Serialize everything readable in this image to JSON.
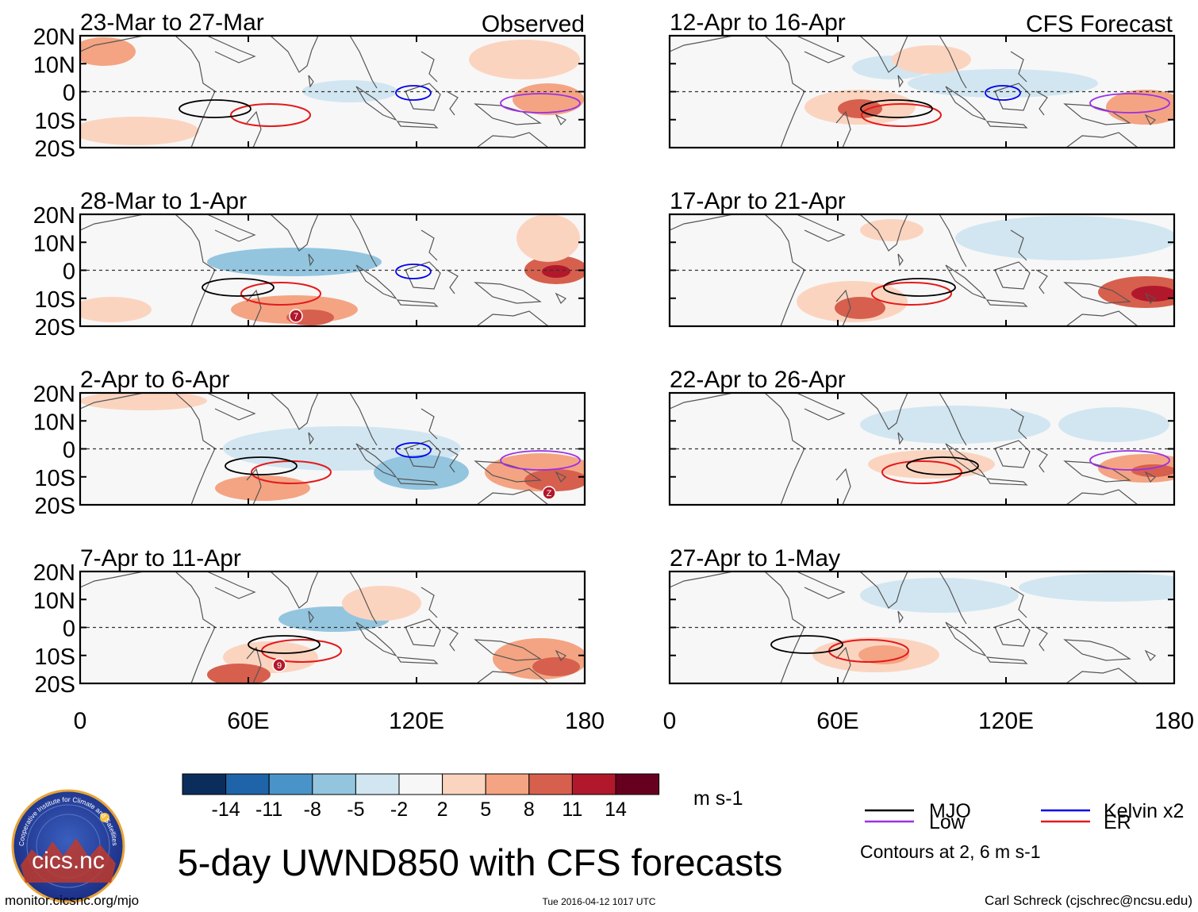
{
  "observed_label": "Observed",
  "forecast_label": "CFS Forecast",
  "panels": [
    {
      "title": "23-Mar to 27-Mar"
    },
    {
      "title": "28-Mar to 1-Apr"
    },
    {
      "title": "2-Apr to 6-Apr"
    },
    {
      "title": "7-Apr to 11-Apr"
    },
    {
      "title": "12-Apr to 16-Apr"
    },
    {
      "title": "17-Apr to 21-Apr"
    },
    {
      "title": "22-Apr to 26-Apr"
    },
    {
      "title": "27-Apr to 1-May"
    }
  ],
  "lat_labels": [
    "20N",
    "10N",
    "0",
    "10S",
    "20S"
  ],
  "lon_labels": [
    "0",
    "60E",
    "120E",
    "180"
  ],
  "storm_markers": [
    {
      "panel": 1,
      "label": "7"
    },
    {
      "panel": 2,
      "label": "Z"
    },
    {
      "panel": 3,
      "label": "9"
    }
  ],
  "colorbar": {
    "colors": [
      "#0b2d5c",
      "#1f64a8",
      "#4a93c8",
      "#93c5df",
      "#d2e6f1",
      "#f7f7f7",
      "#fbd4c0",
      "#f4a482",
      "#d6604d",
      "#b2182b",
      "#67001f"
    ],
    "ticks": [
      "-14",
      "-11",
      "-8",
      "-5",
      "-2",
      "2",
      "5",
      "8",
      "11",
      "14"
    ],
    "units": "m s-1"
  },
  "legend": {
    "items": [
      {
        "label": "MJO",
        "color": "#000000"
      },
      {
        "label": "Kelvin x2",
        "color": "#0000ee"
      },
      {
        "label": "Low",
        "color": "#9b30e6"
      },
      {
        "label": "ER",
        "color": "#e41a1c"
      }
    ],
    "note": "Contours at 2, 6 m s-1"
  },
  "main_title": "5-day UWND850 with CFS forecasts",
  "logo_text": "cics.nc",
  "logo_ring_text": "Cooperative Institute for Climate and Satellites",
  "footer": {
    "left": "monitor.cicsnc.org/mjo",
    "center": "Tue 2016-04-12 1017 UTC",
    "right": "Carl Schreck (cjschrec@ncsu.edu)"
  }
}
